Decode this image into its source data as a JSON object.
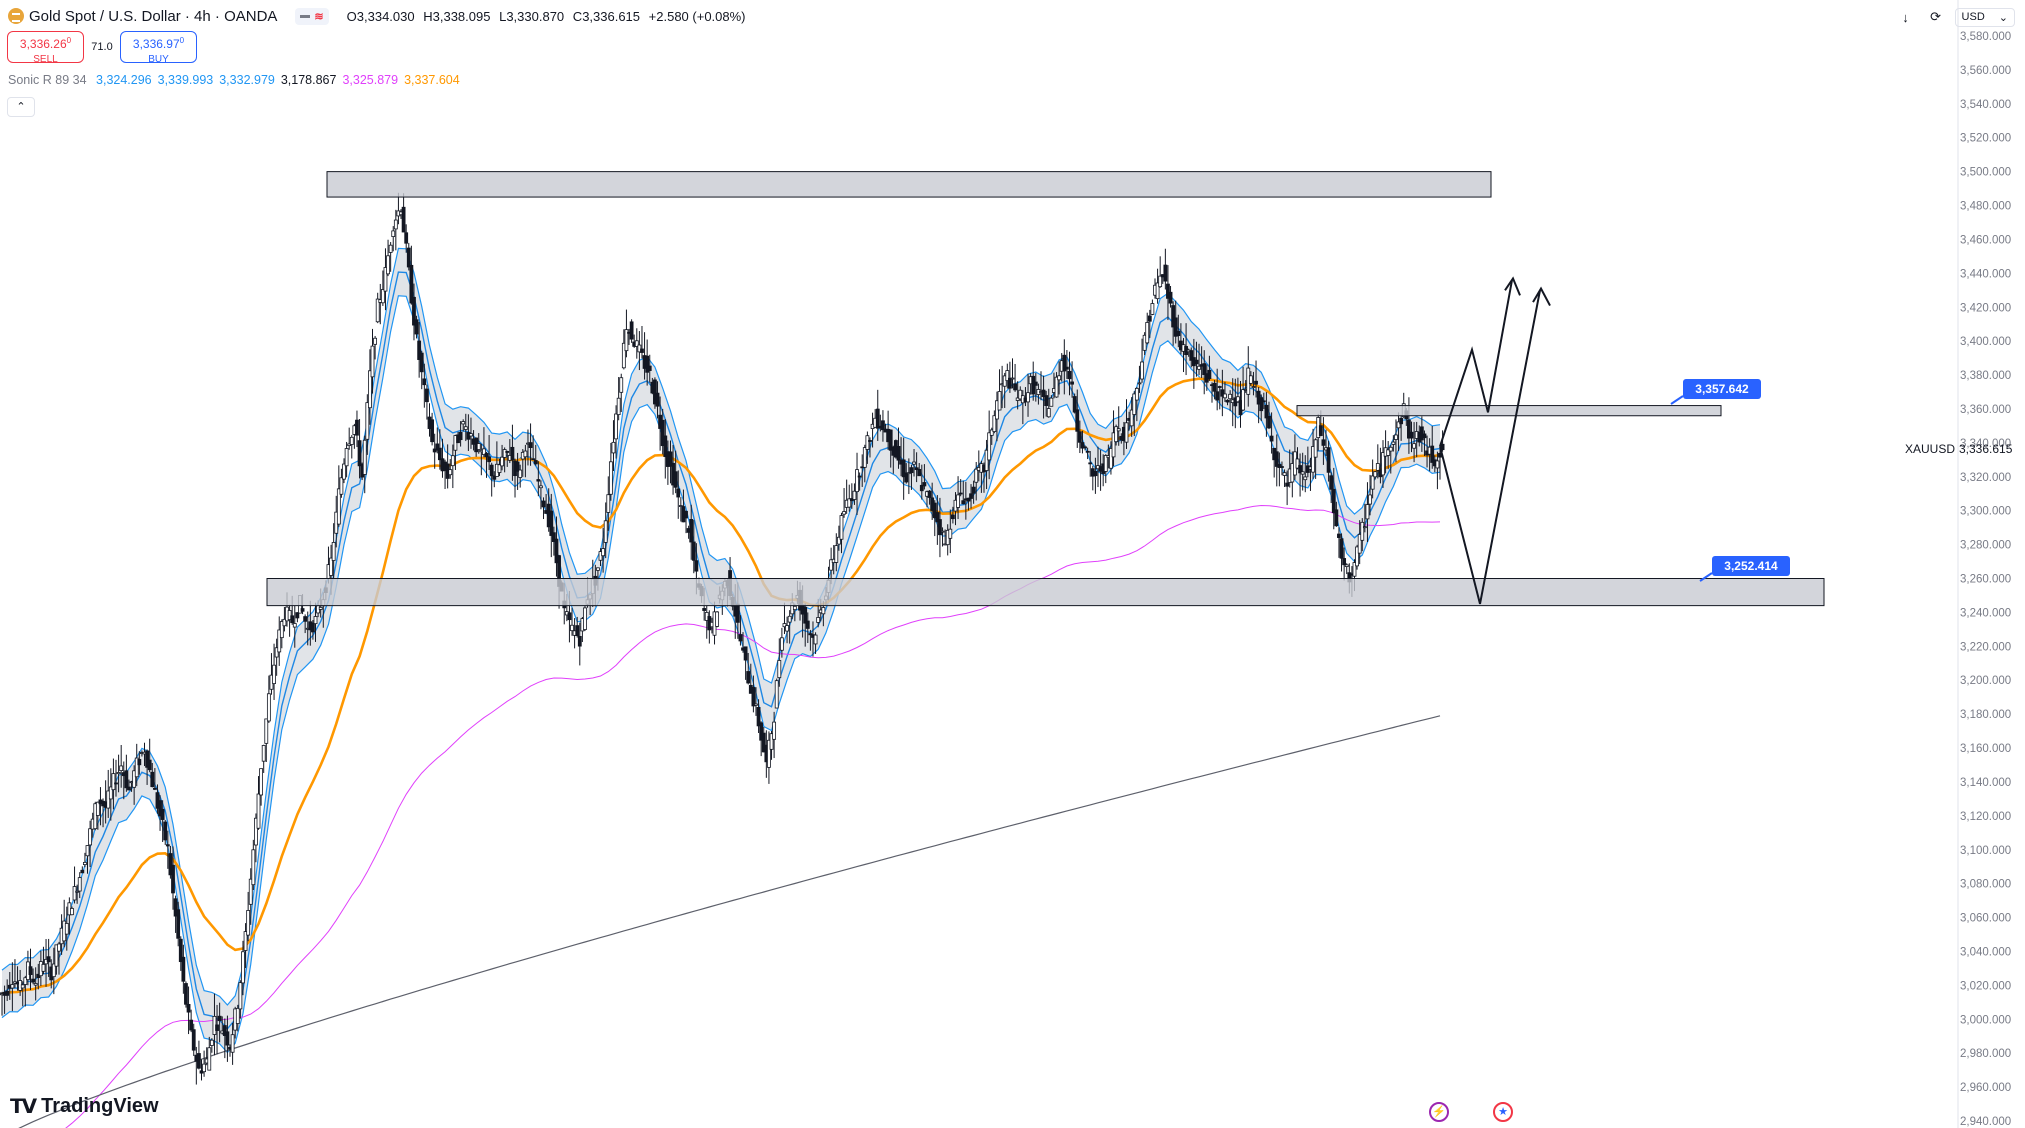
{
  "header": {
    "symbol_title": "Gold Spot / U.S. Dollar · 4h · OANDA",
    "ohlc": [
      {
        "key": "O",
        "value": "3,334.030"
      },
      {
        "key": "H",
        "value": "3,338.095"
      },
      {
        "key": "L",
        "value": "3,330.870"
      },
      {
        "key": "C",
        "value": "3,336.615"
      }
    ],
    "change": "+2.580 (+0.08%)"
  },
  "trade": {
    "sell_price": "3,336.26",
    "sell_price_sup": "0",
    "sell_label": "SELL",
    "spread": "71.0",
    "buy_price": "3,336.97",
    "buy_price_sup": "0",
    "buy_label": "BUY"
  },
  "indicator": {
    "name": "Sonic R 89 34",
    "values": [
      {
        "text": "3,324.296",
        "color": "#2196f3"
      },
      {
        "text": "3,339.993",
        "color": "#2196f3"
      },
      {
        "text": "3,332.979",
        "color": "#2196f3"
      },
      {
        "text": "3,178.867",
        "color": "#131722"
      },
      {
        "text": "3,325.879",
        "color": "#e040fb"
      },
      {
        "text": "3,337.604",
        "color": "#ff9800"
      }
    ]
  },
  "currency": "USD",
  "symbol_tag": "XAUUSD",
  "last_price": "3,336.615",
  "brand": "TradingView",
  "price_axis": {
    "ticks": [
      "3,580.000",
      "3,560.000",
      "3,540.000",
      "3,520.000",
      "3,500.000",
      "3,480.000",
      "3,460.000",
      "3,440.000",
      "3,420.000",
      "3,400.000",
      "3,380.000",
      "3,360.000",
      "3,340.000",
      "3,320.000",
      "3,300.000",
      "3,280.000",
      "3,260.000",
      "3,240.000",
      "3,220.000",
      "3,200.000",
      "3,180.000",
      "3,160.000",
      "3,140.000",
      "3,120.000",
      "3,100.000",
      "3,080.000",
      "3,060.000",
      "3,040.000",
      "3,020.000",
      "3,000.000",
      "2,980.000",
      "2,960.000",
      "2,940.000"
    ]
  },
  "annotations": {
    "upper_level": "3,357.642",
    "lower_level": "3,252.414"
  },
  "colors": {
    "accent": "#2962ff",
    "ema_slow": "#ff9800",
    "ema_pink": "#e040fb",
    "band": "#2196f3"
  },
  "chart_data": {
    "type": "candlestick",
    "symbol": "XAUUSD",
    "timeframe": "4h",
    "ylim": [
      2940,
      3580
    ],
    "price": [
      3015,
      3025,
      3018,
      3030,
      3022,
      3035,
      3028,
      3045,
      3060,
      3075,
      3090,
      3110,
      3130,
      3125,
      3140,
      3150,
      3135,
      3150,
      3160,
      3140,
      3120,
      3100,
      3060,
      3020,
      2990,
      2970,
      2975,
      3000,
      2995,
      2985,
      3010,
      3050,
      3100,
      3150,
      3190,
      3220,
      3240,
      3235,
      3245,
      3230,
      3235,
      3250,
      3270,
      3310,
      3340,
      3350,
      3320,
      3380,
      3420,
      3440,
      3470,
      3480,
      3440,
      3400,
      3370,
      3340,
      3330,
      3320,
      3340,
      3350,
      3345,
      3335,
      3330,
      3320,
      3330,
      3335,
      3320,
      3340,
      3330,
      3310,
      3295,
      3270,
      3240,
      3230,
      3225,
      3250,
      3260,
      3280,
      3330,
      3370,
      3410,
      3400,
      3390,
      3380,
      3360,
      3335,
      3320,
      3300,
      3290,
      3260,
      3240,
      3230,
      3250,
      3260,
      3240,
      3215,
      3195,
      3175,
      3150,
      3180,
      3230,
      3240,
      3250,
      3235,
      3225,
      3240,
      3260,
      3280,
      3300,
      3310,
      3325,
      3340,
      3355,
      3350,
      3340,
      3330,
      3320,
      3325,
      3315,
      3305,
      3295,
      3280,
      3300,
      3310,
      3305,
      3320,
      3325,
      3350,
      3370,
      3380,
      3370,
      3365,
      3375,
      3370,
      3360,
      3370,
      3390,
      3380,
      3350,
      3335,
      3320,
      3325,
      3330,
      3350,
      3345,
      3360,
      3380,
      3410,
      3430,
      3440,
      3420,
      3400,
      3395,
      3385,
      3385,
      3375,
      3370,
      3365,
      3370,
      3360,
      3380,
      3370,
      3360,
      3340,
      3325,
      3315,
      3330,
      3320,
      3325,
      3350,
      3335,
      3300,
      3270,
      3260,
      3275,
      3295,
      3320,
      3325,
      3340,
      3345,
      3360,
      3340,
      3345,
      3335,
      3330,
      3338
    ]
  }
}
